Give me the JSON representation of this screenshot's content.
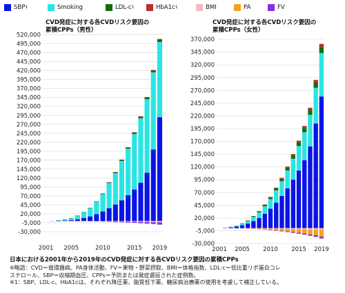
{
  "legend": [
    {
      "label": "SBP",
      "sup": "1",
      "color": "#0a14e6"
    },
    {
      "label": "Smoking",
      "sup": "",
      "color": "#2ae5e3"
    },
    {
      "label": "LDL-c",
      "sup": "1",
      "color": "#0f6e10"
    },
    {
      "label": "HbA1c",
      "sup": "1",
      "color": "#b7302c"
    },
    {
      "label": "BMI",
      "sup": "",
      "color": "#f4b8c2"
    },
    {
      "label": "PA",
      "sup": "",
      "color": "#f5a01e"
    },
    {
      "label": "FV",
      "sup": "",
      "color": "#8b2be2"
    }
  ],
  "chart_data": [
    {
      "type": "bar",
      "stacked": true,
      "title": [
        "CVD発症に対する各CVDリスク要因の",
        "累積CPPs（男性）"
      ],
      "x": [
        2001,
        2002,
        2003,
        2004,
        2005,
        2006,
        2007,
        2008,
        2009,
        2010,
        2011,
        2012,
        2013,
        2014,
        2015,
        2016,
        2017,
        2018,
        2019
      ],
      "x_ticks": [
        "2001",
        "2005",
        "2010",
        "2015",
        "2019"
      ],
      "ylim": [
        -30000,
        525000
      ],
      "y_ticks": [
        "-30,000",
        "-5,000",
        "20,000",
        "45,000",
        "70,000",
        "95,000",
        "120,000",
        "145,000",
        "170,000",
        "195,000",
        "220,000",
        "245,000",
        "270,000",
        "295,000",
        "320,000",
        "345,000",
        "370,000",
        "395,000",
        "420,000",
        "445,000",
        "470,000",
        "495,000",
        "520,000"
      ],
      "grid": true,
      "series": [
        {
          "name": "SBP",
          "values": [
            0,
            300,
            800,
            1500,
            2500,
            5000,
            8500,
            13000,
            19000,
            27000,
            36000,
            46000,
            58000,
            72000,
            88000,
            107000,
            135000,
            200000,
            290000
          ]
        },
        {
          "name": "Smoking",
          "values": [
            0,
            500,
            1500,
            3000,
            5500,
            10000,
            16000,
            23000,
            35000,
            48000,
            70000,
            88000,
            110000,
            130000,
            155000,
            180000,
            205000,
            215000,
            210000
          ]
        },
        {
          "name": "LDL-c",
          "values": [
            0,
            0,
            50,
            100,
            200,
            400,
            600,
            800,
            1100,
            1500,
            1900,
            2300,
            2700,
            3100,
            3600,
            4100,
            4600,
            5000,
            6000
          ]
        },
        {
          "name": "HbA1c",
          "values": [
            0,
            0,
            20,
            50,
            100,
            150,
            200,
            300,
            400,
            500,
            600,
            800,
            900,
            1100,
            1300,
            1500,
            1700,
            1900,
            2500
          ]
        },
        {
          "name": "BMI",
          "values": [
            0,
            0,
            0,
            -10,
            -20,
            -40,
            -80,
            -150,
            -250,
            -400,
            -600,
            -800,
            -1000,
            -1300,
            -1600,
            -2000,
            -2400,
            -2800,
            -3200
          ]
        },
        {
          "name": "PA",
          "values": [
            0,
            0,
            0,
            0,
            -10,
            -20,
            -40,
            -60,
            -90,
            -120,
            -160,
            -200,
            -250,
            -300,
            -360,
            -420,
            -500,
            -600,
            -800
          ]
        },
        {
          "name": "FV",
          "values": [
            0,
            0,
            -20,
            -50,
            -100,
            -200,
            -350,
            -500,
            -700,
            -1000,
            -1300,
            -1700,
            -2100,
            -2600,
            -3100,
            -3700,
            -4300,
            -5000,
            -6000
          ]
        }
      ]
    },
    {
      "type": "bar",
      "stacked": true,
      "title": [
        "CVD発症に対する各CVDリスク要因の",
        "累積CPPs（女性）"
      ],
      "x": [
        2001,
        2002,
        2003,
        2004,
        2005,
        2006,
        2007,
        2008,
        2009,
        2010,
        2011,
        2012,
        2013,
        2014,
        2015,
        2016,
        2017,
        2018,
        2019
      ],
      "x_ticks": [
        "2001",
        "2005",
        "2010",
        "2015",
        "2019"
      ],
      "ylim": [
        -30000,
        385000
      ],
      "y_ticks": [
        "-30,000",
        "-5,000",
        "20,000",
        "45,000",
        "70,000",
        "95,000",
        "120,000",
        "145,000",
        "170,000",
        "195,000",
        "220,000",
        "245,000",
        "270,000",
        "295,000",
        "320,000",
        "345,000",
        "370,000"
      ],
      "grid": true,
      "series": [
        {
          "name": "SBP",
          "values": [
            0,
            500,
            1500,
            3000,
            5500,
            9000,
            14000,
            20000,
            28000,
            38000,
            50000,
            63000,
            78000,
            95000,
            113000,
            133000,
            160000,
            205000,
            258000
          ]
        },
        {
          "name": "Smoking",
          "values": [
            0,
            300,
            800,
            1500,
            3000,
            5000,
            8000,
            11000,
            15000,
            19000,
            24000,
            29000,
            35000,
            41000,
            48000,
            55000,
            62000,
            70000,
            85000
          ]
        },
        {
          "name": "LDL-c",
          "values": [
            0,
            100,
            200,
            400,
            700,
            1000,
            1400,
            1900,
            2500,
            3100,
            3800,
            4600,
            5400,
            6300,
            7200,
            8200,
            9300,
            10300,
            12000
          ]
        },
        {
          "name": "HbA1c",
          "values": [
            0,
            0,
            50,
            100,
            200,
            300,
            450,
            650,
            900,
            1200,
            1500,
            1900,
            2300,
            2800,
            3300,
            3900,
            4500,
            5100,
            6000
          ]
        },
        {
          "name": "BMI",
          "values": [
            0,
            0,
            -20,
            -50,
            -100,
            -200,
            -300,
            -450,
            -600,
            -800,
            -1000,
            -1250,
            -1500,
            -1800,
            -2100,
            -2400,
            -2800,
            -3200,
            -3600
          ]
        },
        {
          "name": "PA",
          "values": [
            0,
            0,
            -50,
            -150,
            -300,
            -500,
            -800,
            -1200,
            -1700,
            -2300,
            -3000,
            -3800,
            -4700,
            -5700,
            -6800,
            -8000,
            -9300,
            -10700,
            -13000
          ]
        },
        {
          "name": "FV",
          "values": [
            0,
            0,
            -20,
            -50,
            -100,
            -200,
            -300,
            -450,
            -600,
            -800,
            -1000,
            -1250,
            -1500,
            -1800,
            -2100,
            -2400,
            -2800,
            -3200,
            -3600
          ]
        }
      ]
    }
  ],
  "caption": {
    "title": "日本における2001年から2019年のCVD発症に対する各CVDリスク要因の累積CPPs",
    "note1": "※略語：CVD＝循環器病、PA身体活動、FV＝果物・野菜摂取、BMI＝体格指数、LDL-c＝低比重リポ蛋白コレ",
    "note2": "ステロール、SBP＝収縮期血圧、CPPs＝予防または発症遅延された症例数。",
    "note3": "※1：SBP、LDL-c、HbA1cは、それぞれ降圧薬、脂質低下薬、糖尿病治療薬の使用を考慮して補正している。"
  }
}
